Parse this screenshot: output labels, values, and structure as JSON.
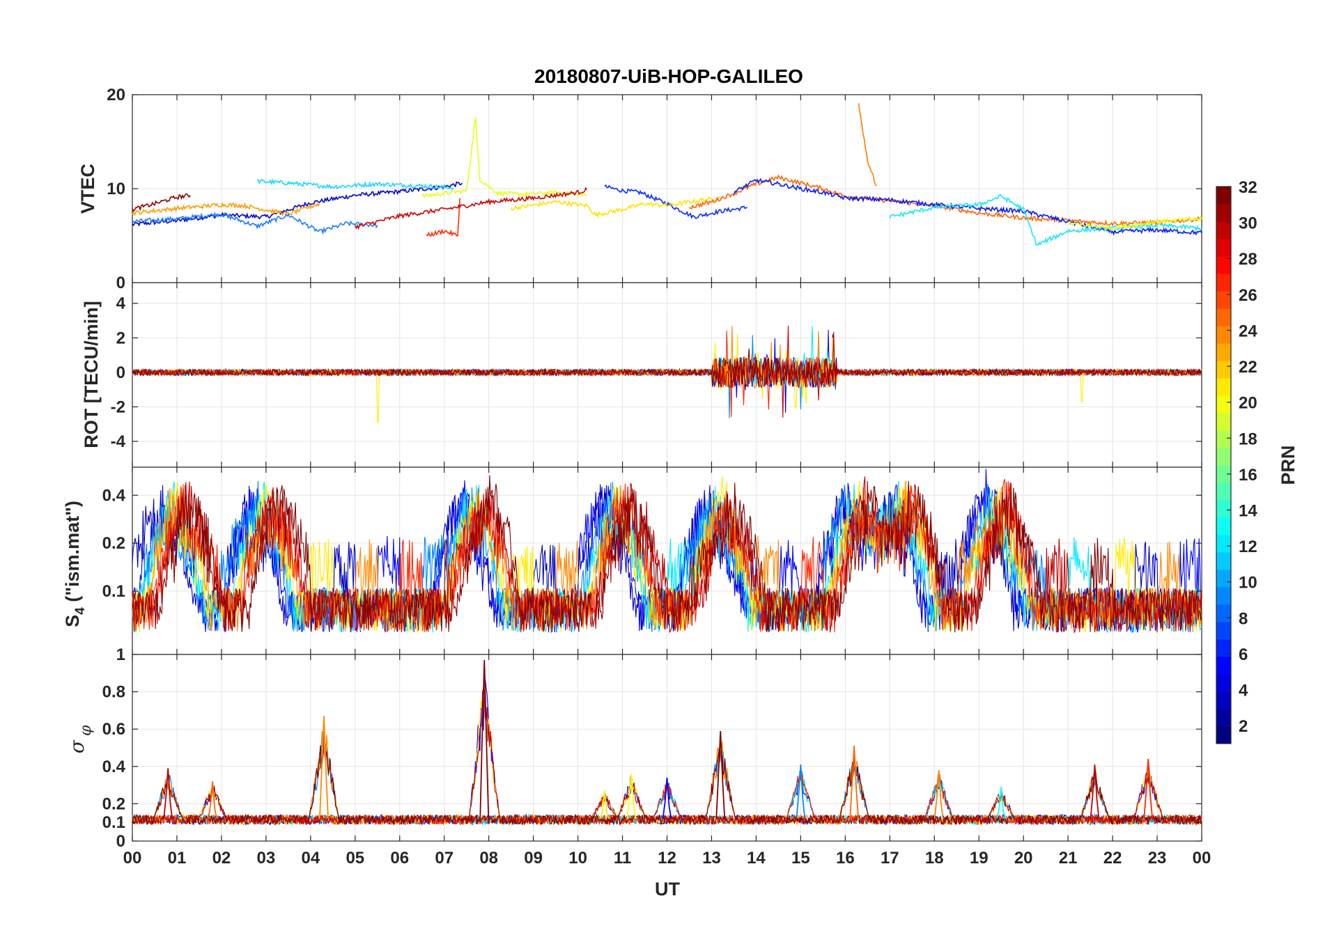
{
  "chart_data": {
    "type": "line",
    "title": "20180807-UiB-HOP-GALILEO",
    "xlabel": "UT",
    "x_ticks": [
      "00",
      "01",
      "02",
      "03",
      "04",
      "05",
      "06",
      "07",
      "08",
      "09",
      "10",
      "11",
      "12",
      "13",
      "14",
      "15",
      "16",
      "17",
      "18",
      "19",
      "20",
      "21",
      "22",
      "23",
      "00"
    ],
    "x_range_hours": [
      0,
      24
    ],
    "grid": true,
    "colorbar": {
      "label": "PRN",
      "range": [
        1,
        32
      ],
      "ticks": [
        "2",
        "4",
        "6",
        "8",
        "10",
        "12",
        "14",
        "16",
        "18",
        "20",
        "22",
        "24",
        "26",
        "28",
        "30",
        "32"
      ],
      "colormap": "jet",
      "placement": "right"
    },
    "panels": [
      {
        "id": "vtec",
        "ylabel": "VTEC",
        "ylim": [
          0,
          20
        ],
        "yticks": [
          "0",
          "10",
          "20"
        ],
        "series": [
          {
            "prn": 3,
            "color": "#0000d0",
            "x": [
              0,
              1,
              2,
              3,
              4,
              5,
              6,
              7,
              7.4
            ],
            "y": [
              6.2,
              6.6,
              7.2,
              7.0,
              8.5,
              9.3,
              9.7,
              10.2,
              10.6
            ]
          },
          {
            "prn": 5,
            "color": "#0a2bff",
            "x": [
              10.6,
              11,
              11.4,
              12,
              12.6,
              13.2,
              13.8
            ],
            "y": [
              10.2,
              9.8,
              9.6,
              8.4,
              7.0,
              7.6,
              8.0
            ]
          },
          {
            "prn": 9,
            "color": "#1a7bff",
            "x": [
              0,
              1,
              2,
              2.8,
              3.5,
              4.2,
              4.8,
              5.5
            ],
            "y": [
              6.5,
              6.8,
              7.3,
              6.0,
              7.2,
              5.4,
              6.3,
              6.1
            ]
          },
          {
            "prn": 12,
            "color": "#18d6ff",
            "x": [
              2.8,
              3.5,
              4.5,
              5.5,
              6.5,
              7.2
            ],
            "y": [
              10.8,
              10.6,
              10.2,
              10.5,
              10.3,
              10.1
            ]
          },
          {
            "prn": 20,
            "color": "#e8ff12",
            "x": [
              6.5,
              7.5,
              7.7,
              7.8,
              8.2,
              8.8,
              9.5,
              10.2
            ],
            "y": [
              9.2,
              9.8,
              17.5,
              11.0,
              9.5,
              9.4,
              9.6,
              9.3
            ]
          },
          {
            "prn": 21,
            "color": "#ffe200",
            "x": [
              8.5,
              9.5,
              10.2,
              10.4,
              11,
              11.5,
              12,
              12.8,
              13.2
            ],
            "y": [
              7.9,
              8.6,
              8.2,
              7.2,
              7.8,
              8.4,
              8.2,
              8.8,
              9.0
            ]
          },
          {
            "prn": 23,
            "color": "#ff9a00",
            "x": [
              0,
              1,
              2,
              2.5,
              3.5,
              4.2
            ],
            "y": [
              7.4,
              7.9,
              8.3,
              8.2,
              7.3,
              8.4
            ]
          },
          {
            "prn": 24,
            "color": "#ff7800",
            "x": [
              16.3,
              16.5,
              16.7
            ],
            "y": [
              19.0,
              13.0,
              10.3
            ]
          },
          {
            "prn": 27,
            "color": "#ff2a00",
            "x": [
              6.6,
              7.0,
              7.3,
              7.35
            ],
            "y": [
              5.0,
              5.5,
              5.0,
              9.0
            ]
          },
          {
            "prn": 30,
            "color": "#c80000",
            "x": [
              5.0,
              6.0,
              7.0,
              8.0,
              9.0,
              10.0,
              10.2
            ],
            "y": [
              5.9,
              7.1,
              7.8,
              8.6,
              9.0,
              9.6,
              9.9
            ]
          },
          {
            "prn": 32,
            "color": "#8a0000",
            "x": [
              0,
              0.5,
              1.0,
              1.3
            ],
            "y": [
              7.8,
              8.4,
              9.1,
              9.3
            ]
          },
          {
            "prn": 25,
            "color": "#ff6200",
            "x": [
              12.5,
              13,
              13.5,
              14,
              14.5,
              15,
              15.5,
              16,
              17,
              18,
              19,
              20,
              21,
              22,
              23,
              24
            ],
            "y": [
              8.0,
              8.6,
              9.5,
              10.5,
              11.2,
              10.6,
              10.0,
              9.2,
              8.7,
              8.2,
              7.4,
              6.9,
              6.6,
              6.3,
              6.4,
              6.8
            ]
          },
          {
            "prn": 4,
            "color": "#0018ff",
            "x": [
              13.5,
              14,
              14.5,
              15,
              15.5,
              16,
              17,
              18,
              19,
              20,
              21,
              22,
              23,
              24
            ],
            "y": [
              9.6,
              10.9,
              10.5,
              10.0,
              9.6,
              9.0,
              8.8,
              8.3,
              7.9,
              7.6,
              6.5,
              5.4,
              5.6,
              5.3
            ]
          },
          {
            "prn": 13,
            "color": "#16e6ff",
            "x": [
              17,
              18,
              19,
              19.5,
              20,
              20.3,
              21,
              22,
              23,
              24
            ],
            "y": [
              7.0,
              8.0,
              8.3,
              9.2,
              7.8,
              4.0,
              5.5,
              5.8,
              6.1,
              5.8
            ]
          },
          {
            "prn": 19,
            "color": "#f4ff05",
            "x": [
              21,
              22,
              23,
              24
            ],
            "y": [
              6.3,
              5.8,
              6.5,
              6.8
            ]
          }
        ]
      },
      {
        "id": "rot",
        "ylabel": "ROT [TECU/min]",
        "ylim": [
          -5.5,
          5.2
        ],
        "yticks": [
          "-4",
          "-2",
          "0",
          "2",
          "4"
        ],
        "note": "dense noise centred on 0 with bursts reaching ±3 TECU/min between 13 and 15.8 UT; isolated spikes near 5.5 UT (-2.9) and 21.3 UT (-1.7)"
      },
      {
        "id": "s4",
        "ylabel": "S4 (\"ism.mat\")",
        "ylim": [
          0.04,
          0.6
        ],
        "scale": "log",
        "yticks": [
          "0.1",
          "0.2",
          "0.4"
        ],
        "note": "background 0.05–0.1 with bursts above 0.4 near 1, 3, 7.7, 10.8–11.2, 13.2, 16.3, 17.3, 19.4 UT"
      },
      {
        "id": "sigma_phi",
        "ylabel": "σφ",
        "ylim": [
          0,
          1.0
        ],
        "yticks": [
          "0",
          "0.1",
          "0.2",
          "0.4",
          "0.6",
          "0.8",
          "1"
        ],
        "peaks": [
          {
            "x": 0.8,
            "y": 0.39
          },
          {
            "x": 1.8,
            "y": 0.32
          },
          {
            "x": 4.3,
            "y": 0.67
          },
          {
            "x": 7.9,
            "y": 0.97
          },
          {
            "x": 10.6,
            "y": 0.27
          },
          {
            "x": 11.2,
            "y": 0.36
          },
          {
            "x": 12.0,
            "y": 0.34
          },
          {
            "x": 13.2,
            "y": 0.59
          },
          {
            "x": 15.0,
            "y": 0.41
          },
          {
            "x": 16.2,
            "y": 0.51
          },
          {
            "x": 18.1,
            "y": 0.38
          },
          {
            "x": 19.5,
            "y": 0.29
          },
          {
            "x": 21.6,
            "y": 0.41
          },
          {
            "x": 22.8,
            "y": 0.44
          }
        ]
      }
    ]
  }
}
